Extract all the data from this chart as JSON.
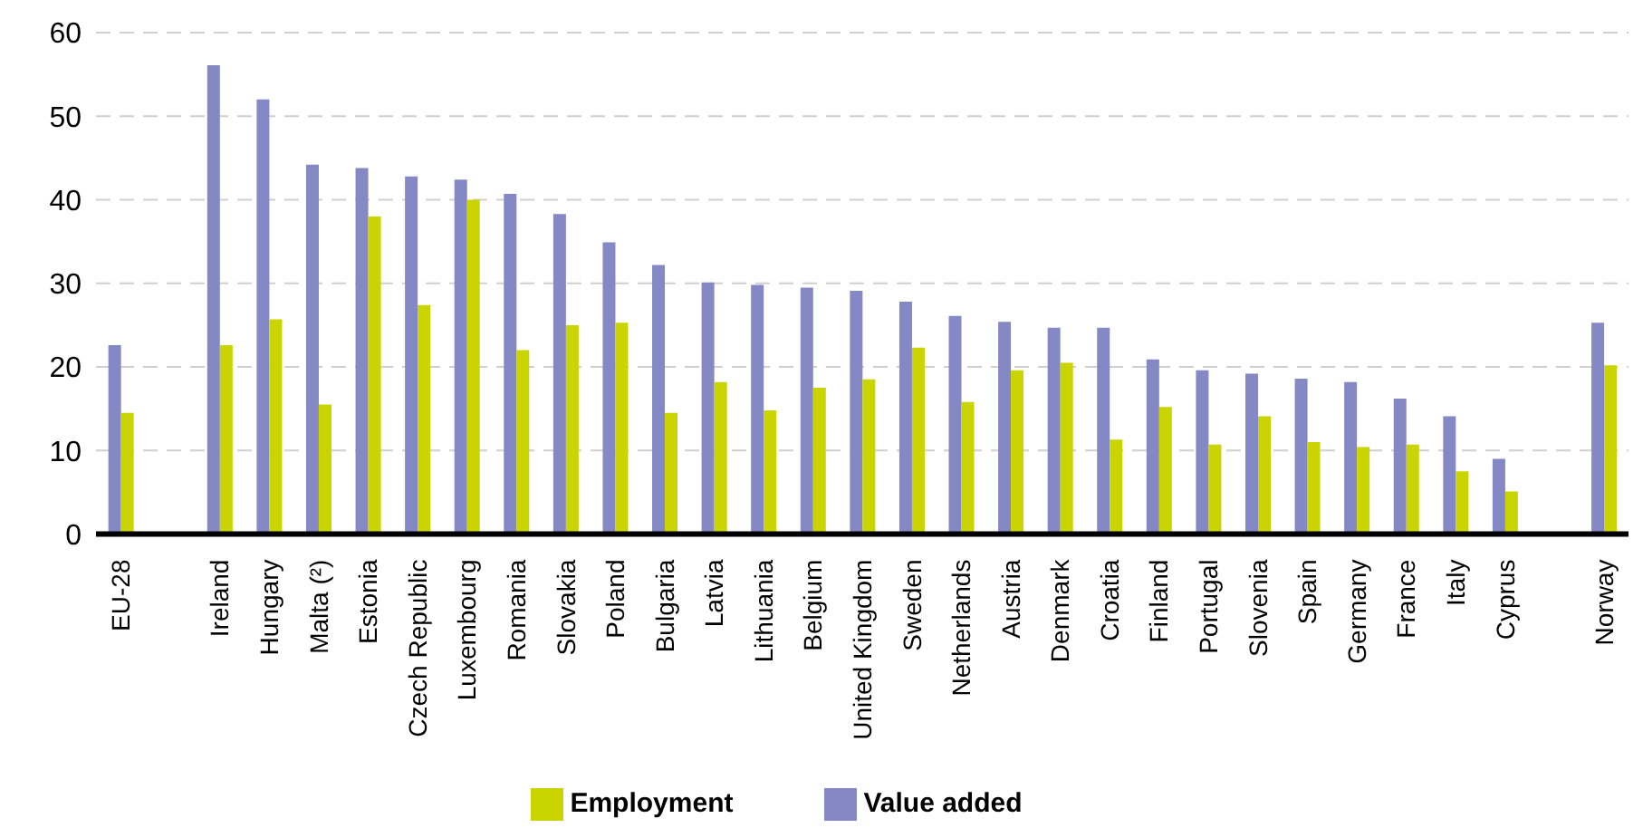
{
  "chart_data": {
    "type": "bar",
    "categories": [
      "EU-28",
      null,
      "Ireland",
      "Hungary",
      "Malta (²)",
      "Estonia",
      "Czech Republic",
      "Luxembourg",
      "Romania",
      "Slovakia",
      "Poland",
      "Bulgaria",
      "Latvia",
      "Lithuania",
      "Belgium",
      "United Kingdom",
      "Sweden",
      "Netherlands",
      "Austria",
      "Denmark",
      "Croatia",
      "Finland",
      "Portugal",
      "Slovenia",
      "Spain",
      "Germany",
      "France",
      "Italy",
      "Cyprus",
      null,
      "Norway"
    ],
    "series": [
      {
        "name": "Value added",
        "color": "#8488c4",
        "values": [
          22.6,
          null,
          56.1,
          52.0,
          44.2,
          43.8,
          42.8,
          42.4,
          40.7,
          38.3,
          34.9,
          32.2,
          30.1,
          29.8,
          29.5,
          29.1,
          27.8,
          26.1,
          25.4,
          24.7,
          24.7,
          20.9,
          19.6,
          19.2,
          18.6,
          18.2,
          16.2,
          14.1,
          9.0,
          null,
          25.3
        ]
      },
      {
        "name": "Employment",
        "color": "#cad400",
        "values": [
          14.5,
          null,
          22.6,
          25.7,
          15.5,
          38.0,
          27.4,
          40.0,
          22.0,
          25.0,
          25.3,
          14.5,
          18.2,
          14.8,
          17.5,
          18.5,
          22.3,
          15.8,
          19.6,
          20.5,
          11.3,
          15.2,
          10.7,
          14.1,
          11.0,
          10.4,
          10.7,
          7.5,
          5.1,
          null,
          20.2
        ]
      }
    ],
    "ylim": [
      0,
      60
    ],
    "yticks": [
      0,
      10,
      20,
      30,
      40,
      50,
      60
    ],
    "grid": "y",
    "legend": "bottom"
  }
}
